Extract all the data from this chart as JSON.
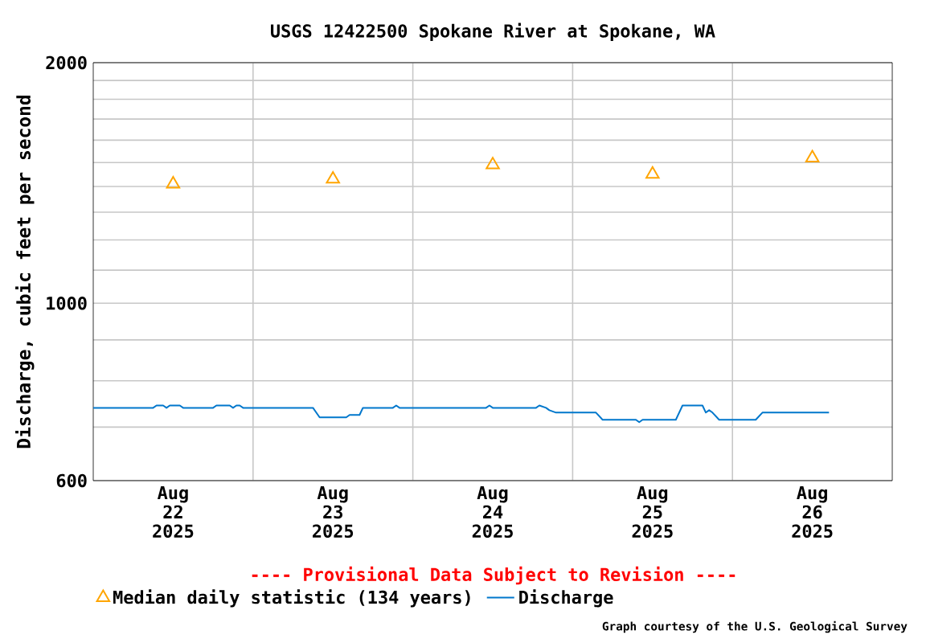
{
  "chart_data": {
    "type": "line",
    "title": "USGS 12422500 Spokane River at Spokane, WA",
    "ylabel": "Discharge, cubic feet per second",
    "log": "y",
    "grid": true,
    "legend": "bottom",
    "xlim": [
      "2025-08-22T00:00",
      "2025-08-27T00:00"
    ],
    "xticks": [
      {
        "value": "2025-08-22T12:00",
        "label": "Aug 22 2025"
      },
      {
        "value": "2025-08-23T12:00",
        "label": "Aug 23 2025"
      },
      {
        "value": "2025-08-24T12:00",
        "label": "Aug 24 2025"
      },
      {
        "value": "2025-08-25T12:00",
        "label": "Aug 25 2025"
      },
      {
        "value": "2025-08-26T12:00",
        "label": "Aug 26 2025"
      },
      {
        "value": "2025-08-23T00:00",
        "label": null
      },
      {
        "value": "2025-08-24T00:00",
        "label": null
      },
      {
        "value": "2025-08-25T00:00",
        "label": null
      },
      {
        "value": "2025-08-26T00:00",
        "label": null
      }
    ],
    "ylim": [
      600,
      2000
    ],
    "yticks": [
      600,
      {
        "value": 700,
        "label": null
      },
      {
        "value": 800,
        "label": null
      },
      {
        "value": 900,
        "label": null
      },
      1000,
      {
        "value": 1100,
        "label": null
      },
      {
        "value": 1200,
        "label": null
      },
      {
        "value": 1300,
        "label": null
      },
      {
        "value": 1400,
        "label": null
      },
      {
        "value": 1500,
        "label": null
      },
      {
        "value": 1600,
        "label": null
      },
      {
        "value": 1700,
        "label": null
      },
      {
        "value": 1800,
        "label": null
      },
      {
        "value": 1900,
        "label": null
      },
      2000
    ],
    "series": [
      {
        "name": "Median daily statistic (134 years)",
        "type": "scatter",
        "marker": "triangle",
        "color": "#ffa500",
        "x": [
          "2025-08-22T12:00",
          "2025-08-23T12:00",
          "2025-08-24T12:00",
          "2025-08-25T12:00",
          "2025-08-26T12:00"
        ],
        "values": [
          1410,
          1430,
          1490,
          1450,
          1520
        ]
      },
      {
        "name": "Discharge",
        "color": "#0077cc",
        "x": [
          "2025-08-22T00:00",
          "2025-08-22T09:00",
          "2025-08-22T09:30",
          "2025-08-22T10:30",
          "2025-08-22T11:00",
          "2025-08-22T11:30",
          "2025-08-22T13:00",
          "2025-08-22T13:30",
          "2025-08-22T18:00",
          "2025-08-22T18:30",
          "2025-08-22T20:30",
          "2025-08-22T21:00",
          "2025-08-22T21:30",
          "2025-08-22T22:00",
          "2025-08-22T22:30",
          "2025-08-23T09:00",
          "2025-08-23T10:00",
          "2025-08-23T14:00",
          "2025-08-23T14:30",
          "2025-08-23T16:00",
          "2025-08-23T16:30",
          "2025-08-23T21:00",
          "2025-08-23T21:30",
          "2025-08-23T22:00",
          "2025-08-24T11:00",
          "2025-08-24T11:30",
          "2025-08-24T12:00",
          "2025-08-24T18:30",
          "2025-08-24T19:00",
          "2025-08-24T20:00",
          "2025-08-24T20:30",
          "2025-08-24T21:30",
          "2025-08-25T03:30",
          "2025-08-25T04:30",
          "2025-08-25T09:30",
          "2025-08-25T10:00",
          "2025-08-25T10:30",
          "2025-08-25T15:30",
          "2025-08-25T16:30",
          "2025-08-25T19:30",
          "2025-08-25T20:00",
          "2025-08-25T20:30",
          "2025-08-25T21:00",
          "2025-08-25T22:00",
          "2025-08-26T03:30",
          "2025-08-26T04:30",
          "2025-08-26T14:30"
        ],
        "values": [
          740,
          740,
          745,
          745,
          740,
          745,
          745,
          740,
          740,
          745,
          745,
          740,
          745,
          745,
          740,
          740,
          720,
          720,
          725,
          725,
          740,
          740,
          745,
          740,
          740,
          745,
          740,
          740,
          745,
          740,
          735,
          730,
          730,
          715,
          715,
          710,
          715,
          715,
          745,
          745,
          730,
          735,
          730,
          715,
          715,
          730,
          730
        ]
      }
    ],
    "annotations": [
      "---- Provisional Data Subject to Revision ----",
      "Graph courtesy of the U.S. Geological Survey"
    ]
  }
}
